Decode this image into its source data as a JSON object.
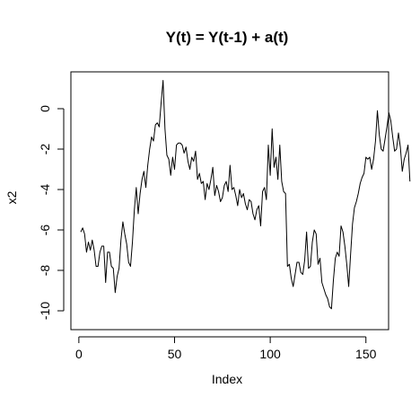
{
  "chart_data": {
    "type": "line",
    "title": "Y(t) = Y(t-1) + a(t)",
    "xlabel": "Index",
    "ylabel": "x2",
    "xlim": [
      0,
      155
    ],
    "ylim": [
      -10.3,
      1.8
    ],
    "xticks": [
      0,
      50,
      100,
      150
    ],
    "yticks": [
      0,
      -2,
      -4,
      -6,
      -8,
      -10
    ],
    "grid": false,
    "series": [
      {
        "values": [
          -6.1,
          -5.9,
          -6.2,
          -7.1,
          -6.6,
          -7.0,
          -6.5,
          -7.0,
          -7.8,
          -7.8,
          -7.1,
          -6.8,
          -6.8,
          -8.6,
          -7.1,
          -7.1,
          -7.8,
          -7.9,
          -9.1,
          -8.3,
          -7.9,
          -6.5,
          -5.6,
          -6.2,
          -6.7,
          -7.6,
          -7.8,
          -6.6,
          -5.0,
          -3.9,
          -5.2,
          -4.2,
          -3.5,
          -3.1,
          -3.9,
          -2.8,
          -2.0,
          -1.4,
          -1.6,
          -0.8,
          -0.7,
          -0.9,
          0.3,
          1.4,
          -1.0,
          -2.3,
          -2.5,
          -3.3,
          -2.4,
          -3.0,
          -1.8,
          -1.7,
          -1.7,
          -1.8,
          -2.2,
          -1.9,
          -2.6,
          -3.0,
          -2.4,
          -2.6,
          -2.1,
          -3.5,
          -3.2,
          -3.7,
          -3.6,
          -4.5,
          -3.7,
          -4.0,
          -3.5,
          -2.9,
          -4.3,
          -3.8,
          -4.1,
          -4.6,
          -4.4,
          -3.8,
          -3.6,
          -4.1,
          -2.8,
          -4.0,
          -3.9,
          -4.3,
          -4.8,
          -4.0,
          -4.4,
          -4.2,
          -4.7,
          -5.0,
          -4.5,
          -4.6,
          -5.2,
          -5.5,
          -5.0,
          -4.8,
          -5.8,
          -4.1,
          -3.9,
          -4.5,
          -1.8,
          -3.3,
          -1.0,
          -2.9,
          -2.4,
          -3.5,
          -1.8,
          -3.6,
          -4.1,
          -4.2,
          -7.8,
          -7.7,
          -8.4,
          -8.8,
          -8.2,
          -7.6,
          -7.6,
          -8.1,
          -8.2,
          -7.5,
          -6.1,
          -7.9,
          -7.8,
          -6.6,
          -6.0,
          -6.2,
          -7.7,
          -7.4,
          -8.6,
          -8.9,
          -9.2,
          -9.4,
          -9.8,
          -9.9,
          -8.5,
          -7.4,
          -7.1,
          -7.3,
          -5.8,
          -6.1,
          -6.8,
          -7.7,
          -8.8,
          -7.2,
          -5.7,
          -4.9,
          -4.6,
          -4.2,
          -3.7,
          -3.4,
          -3.2,
          -2.4,
          -2.5,
          -2.4,
          -3.0,
          -2.5,
          -1.6,
          -0.1,
          -1.3,
          -2.0,
          -2.1,
          -1.5,
          -0.9,
          -0.2,
          -0.6,
          -1.4,
          -2.1,
          -2.0,
          -1.2,
          -1.9,
          -3.1,
          -2.5,
          -2.2,
          -1.8,
          -3.6
        ]
      }
    ]
  }
}
